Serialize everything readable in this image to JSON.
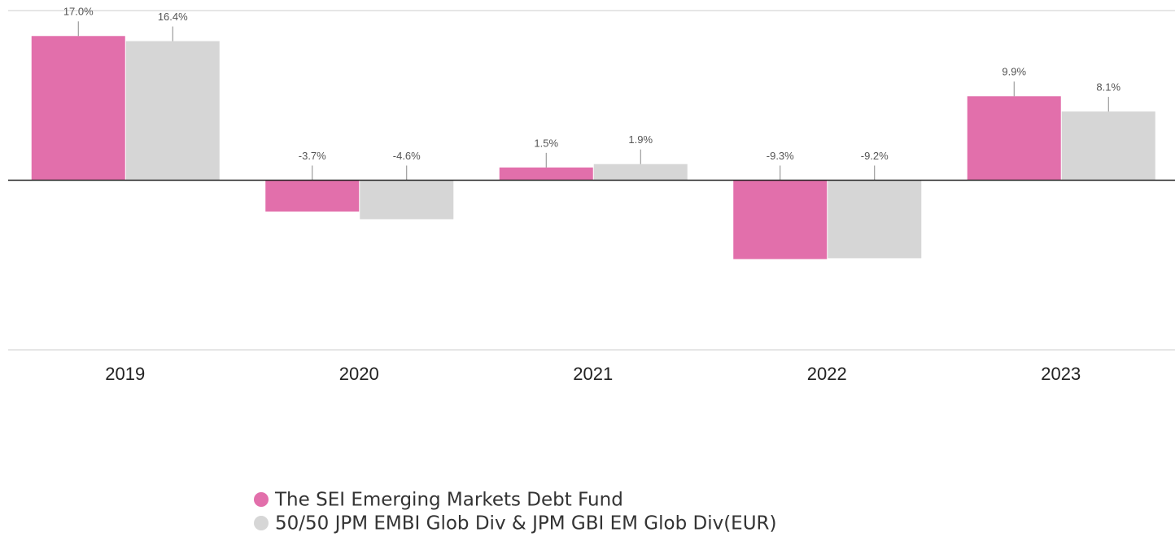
{
  "chart_data": {
    "type": "bar",
    "categories": [
      "2019",
      "2020",
      "2021",
      "2022",
      "2023"
    ],
    "series": [
      {
        "name": "The SEI Emerging Markets Debt Fund",
        "color": "#e26fab",
        "values": [
          17.0,
          -3.7,
          1.5,
          -9.3,
          9.9
        ],
        "value_labels": [
          "17.0%",
          "-3.7%",
          "1.5%",
          "-9.3%",
          "9.9%"
        ]
      },
      {
        "name": "50/50 JPM EMBI Glob Div & JPM GBI EM Glob Div(EUR)",
        "color": "#d6d6d6",
        "values": [
          16.4,
          -4.6,
          1.9,
          -9.2,
          8.1
        ],
        "value_labels": [
          "16.4%",
          "-4.6%",
          "1.9%",
          "-9.2%",
          "8.1%"
        ]
      }
    ],
    "ylim": [
      -20,
      20
    ]
  }
}
